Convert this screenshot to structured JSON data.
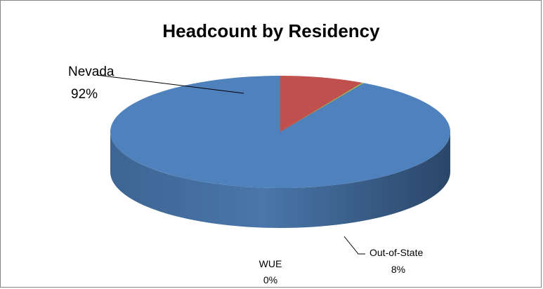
{
  "chart_data": {
    "type": "pie",
    "title": "Headcount by Residency",
    "categories": [
      "Nevada",
      "Out-of-State",
      "WUE"
    ],
    "values": [
      92,
      8,
      0
    ],
    "data_labels": {
      "nevada": {
        "name": "Nevada",
        "pct": "92%"
      },
      "out_of_state": {
        "name": "Out-of-State",
        "pct": "8%"
      },
      "wue": {
        "name": "WUE",
        "pct": "0%"
      }
    },
    "colors": {
      "Nevada": "#4F81BD",
      "Out-of-State": "#C0504D",
      "WUE": "#9BBB59"
    },
    "style": "3d",
    "legend": "none"
  }
}
